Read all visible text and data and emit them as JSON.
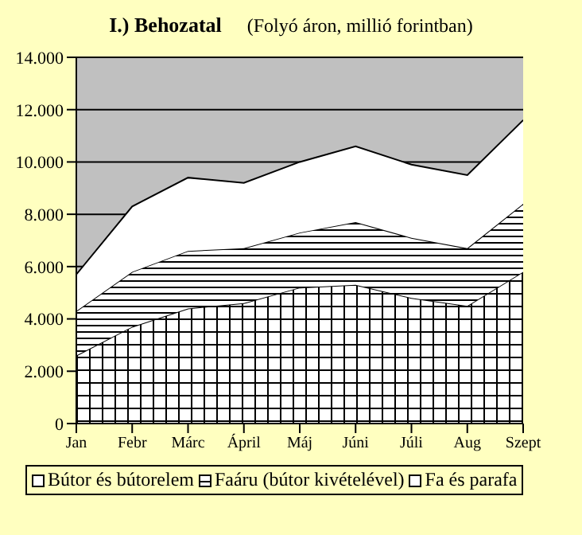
{
  "chart_data": {
    "type": "area",
    "title": "I.) Behozatal",
    "subtitle": "(Folyó áron, millió  forintban)",
    "categories": [
      "Jan",
      "Febr",
      "Márc",
      "Ápril",
      "Máj",
      "Júni",
      "Júli",
      "Aug",
      "Szept"
    ],
    "series": [
      {
        "name": "Bútor és bútorelem",
        "color": "#ffffff",
        "values": [
          2600,
          3700,
          4400,
          4600,
          5200,
          5300,
          4800,
          4500,
          5800
        ]
      },
      {
        "name": "Faáru (bútor kivételével)",
        "color": "#ffffff",
        "values": [
          1700,
          2100,
          2200,
          2100,
          2100,
          2400,
          2300,
          2200,
          2600
        ]
      },
      {
        "name": "Fa és parafa",
        "color": "#ffffff",
        "values": [
          1400,
          2500,
          2800,
          2500,
          2700,
          2900,
          2800,
          2800,
          3200
        ]
      }
    ],
    "stacked": true,
    "ylim": [
      0,
      14000
    ],
    "yticks": [
      {
        "value": 0,
        "label": "0"
      },
      {
        "value": 2000,
        "label": "2.000"
      },
      {
        "value": 4000,
        "label": "4.000"
      },
      {
        "value": 6000,
        "label": "6.000"
      },
      {
        "value": 8000,
        "label": "8.000"
      },
      {
        "value": 10000,
        "label": "10.000"
      },
      {
        "value": 12000,
        "label": "12.000"
      },
      {
        "value": 14000,
        "label": "14.000"
      }
    ],
    "grid": "y",
    "legend": "bottom"
  }
}
